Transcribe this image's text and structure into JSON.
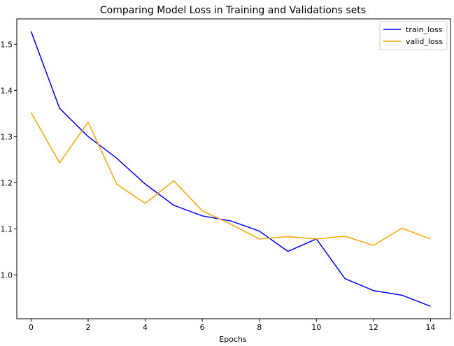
{
  "chart_data": {
    "type": "line",
    "title": "Comparing Model Loss in Training and Validations sets",
    "xlabel": "Epochs",
    "ylabel": "",
    "x": [
      0,
      1,
      2,
      3,
      4,
      5,
      6,
      7,
      8,
      9,
      10,
      11,
      12,
      13,
      14
    ],
    "xlim": [
      -0.5,
      14.7
    ],
    "ylim": [
      0.905,
      1.555
    ],
    "xticks": [
      0,
      2,
      4,
      6,
      8,
      10,
      12,
      14
    ],
    "yticks": [
      1.0,
      1.1,
      1.2,
      1.3,
      1.4,
      1.5
    ],
    "ytick_labels": [
      "1.0",
      "1.1",
      "1.2",
      "1.3",
      "1.4",
      "1.5"
    ],
    "grid": false,
    "legend_position": "top-right",
    "series": [
      {
        "name": "train_loss",
        "color": "#0000ff",
        "values": [
          1.528,
          1.361,
          1.3,
          1.253,
          1.197,
          1.151,
          1.128,
          1.117,
          1.095,
          1.051,
          1.078,
          0.992,
          0.966,
          0.956,
          0.932
        ]
      },
      {
        "name": "valid_loss",
        "color": "#ffa500",
        "values": [
          1.352,
          1.243,
          1.331,
          1.197,
          1.155,
          1.204,
          1.139,
          1.11,
          1.078,
          1.083,
          1.078,
          1.084,
          1.064,
          1.101,
          1.078
        ]
      }
    ]
  }
}
